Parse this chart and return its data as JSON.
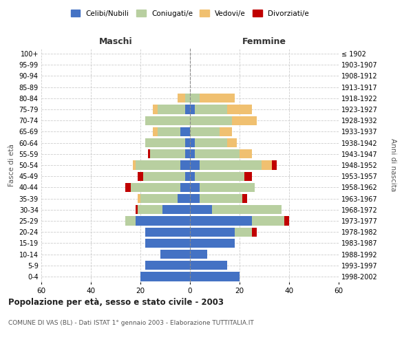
{
  "age_groups": [
    "0-4",
    "5-9",
    "10-14",
    "15-19",
    "20-24",
    "25-29",
    "30-34",
    "35-39",
    "40-44",
    "45-49",
    "50-54",
    "55-59",
    "60-64",
    "65-69",
    "70-74",
    "75-79",
    "80-84",
    "85-89",
    "90-94",
    "95-99",
    "100+"
  ],
  "birth_years": [
    "1998-2002",
    "1993-1997",
    "1988-1992",
    "1983-1987",
    "1978-1982",
    "1973-1977",
    "1968-1972",
    "1963-1967",
    "1958-1962",
    "1953-1957",
    "1948-1952",
    "1943-1947",
    "1938-1942",
    "1933-1937",
    "1928-1932",
    "1923-1927",
    "1918-1922",
    "1913-1917",
    "1908-1912",
    "1903-1907",
    "≤ 1902"
  ],
  "maschi_celibi": [
    20,
    18,
    12,
    18,
    18,
    22,
    11,
    5,
    4,
    2,
    4,
    2,
    2,
    4,
    0,
    2,
    0,
    0,
    0,
    0,
    0
  ],
  "maschi_coniugati": [
    0,
    0,
    0,
    0,
    0,
    4,
    10,
    15,
    20,
    17,
    18,
    14,
    16,
    9,
    18,
    11,
    2,
    0,
    0,
    0,
    0
  ],
  "maschi_vedovi": [
    0,
    0,
    0,
    0,
    0,
    0,
    0,
    1,
    0,
    0,
    1,
    0,
    0,
    2,
    0,
    2,
    3,
    0,
    0,
    0,
    0
  ],
  "maschi_divorziati": [
    0,
    0,
    0,
    0,
    0,
    0,
    1,
    0,
    2,
    2,
    0,
    1,
    0,
    0,
    0,
    0,
    0,
    0,
    0,
    0,
    0
  ],
  "femmine_celibi": [
    20,
    15,
    7,
    18,
    18,
    25,
    9,
    4,
    4,
    2,
    4,
    2,
    2,
    0,
    0,
    2,
    0,
    0,
    0,
    0,
    0
  ],
  "femmine_coniugati": [
    0,
    0,
    0,
    0,
    7,
    13,
    28,
    17,
    22,
    20,
    25,
    18,
    13,
    12,
    17,
    13,
    4,
    0,
    0,
    0,
    0
  ],
  "femmine_vedovi": [
    0,
    0,
    0,
    0,
    0,
    0,
    0,
    0,
    0,
    0,
    4,
    5,
    4,
    5,
    10,
    10,
    14,
    0,
    0,
    0,
    0
  ],
  "femmine_divorziati": [
    0,
    0,
    0,
    0,
    2,
    2,
    0,
    2,
    0,
    3,
    2,
    0,
    0,
    0,
    0,
    0,
    0,
    0,
    0,
    0,
    0
  ],
  "color_celibi": "#4472c4",
  "color_coniugati": "#b8cfa0",
  "color_vedovi": "#f0c070",
  "color_divorziati": "#c00000",
  "title": "Popolazione per età, sesso e stato civile - 2003",
  "subtitle": "COMUNE DI VAS (BL) - Dati ISTAT 1° gennaio 2003 - Elaborazione TUTTITALIA.IT",
  "xlabel_left": "Maschi",
  "xlabel_right": "Femmine",
  "ylabel_left": "Fasce di età",
  "ylabel_right": "Anni di nascita",
  "xlim": 60,
  "background_color": "#ffffff",
  "grid_color": "#cccccc"
}
